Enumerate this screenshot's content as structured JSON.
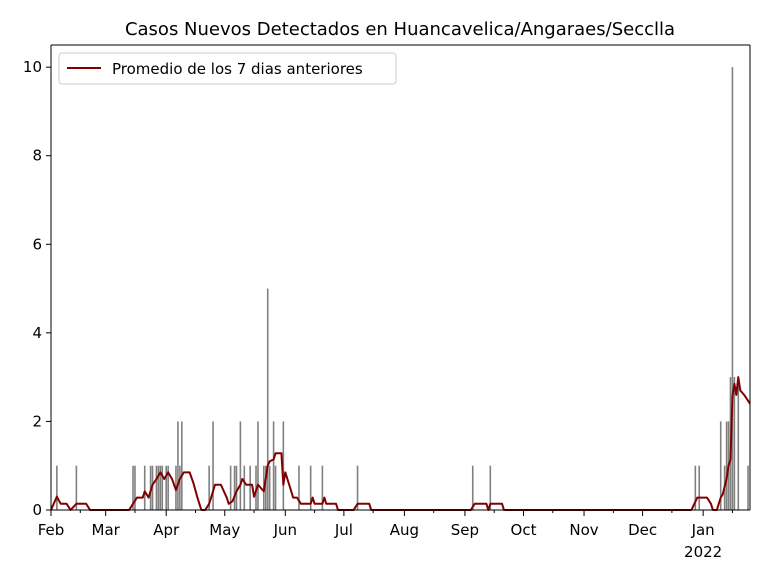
{
  "chart_data": {
    "type": "bar",
    "title": "Casos Nuevos Detectados en Huancavelica/Angaraes/Secclla",
    "xlabel": "",
    "ylabel": "",
    "x_start": "2021-02-01",
    "x_end": "2022-01-25",
    "ylim": [
      0,
      10.5
    ],
    "y_ticks": [
      0,
      2,
      4,
      6,
      8,
      10
    ],
    "x_ticks": [
      {
        "date": "2021-02-01",
        "label": "Feb"
      },
      {
        "date": "2021-03-01",
        "label": "Mar"
      },
      {
        "date": "2021-04-01",
        "label": "Apr"
      },
      {
        "date": "2021-05-01",
        "label": "May"
      },
      {
        "date": "2021-06-01",
        "label": "Jun"
      },
      {
        "date": "2021-07-01",
        "label": "Jul"
      },
      {
        "date": "2021-08-01",
        "label": "Aug"
      },
      {
        "date": "2021-09-01",
        "label": "Sep"
      },
      {
        "date": "2021-10-01",
        "label": "Oct"
      },
      {
        "date": "2021-11-01",
        "label": "Nov"
      },
      {
        "date": "2021-12-01",
        "label": "Dec"
      },
      {
        "date": "2022-01-01",
        "label": "Jan"
      }
    ],
    "year_label": "2022",
    "grid": false,
    "legend_position": "top-left",
    "bar_color": "#808080",
    "line_color": "#800000",
    "series": [
      {
        "name": "",
        "kind": "bar",
        "points": [
          [
            "2021-02-04",
            1
          ],
          [
            "2021-02-14",
            1
          ],
          [
            "2021-03-15",
            1
          ],
          [
            "2021-03-16",
            1
          ],
          [
            "2021-03-21",
            1
          ],
          [
            "2021-03-24",
            1
          ],
          [
            "2021-03-25",
            1
          ],
          [
            "2021-03-27",
            1
          ],
          [
            "2021-03-28",
            1
          ],
          [
            "2021-03-29",
            1
          ],
          [
            "2021-03-30",
            1
          ],
          [
            "2021-04-01",
            1
          ],
          [
            "2021-04-02",
            1
          ],
          [
            "2021-04-06",
            1
          ],
          [
            "2021-04-07",
            2
          ],
          [
            "2021-04-08",
            1
          ],
          [
            "2021-04-09",
            2
          ],
          [
            "2021-04-23",
            1
          ],
          [
            "2021-04-25",
            2
          ],
          [
            "2021-05-04",
            1
          ],
          [
            "2021-05-06",
            1
          ],
          [
            "2021-05-07",
            1
          ],
          [
            "2021-05-09",
            2
          ],
          [
            "2021-05-11",
            1
          ],
          [
            "2021-05-14",
            1
          ],
          [
            "2021-05-17",
            1
          ],
          [
            "2021-05-18",
            2
          ],
          [
            "2021-05-21",
            1
          ],
          [
            "2021-05-22",
            1
          ],
          [
            "2021-05-23",
            5
          ],
          [
            "2021-05-24",
            1
          ],
          [
            "2021-05-26",
            2
          ],
          [
            "2021-05-27",
            1
          ],
          [
            "2021-05-31",
            2
          ],
          [
            "2021-06-08",
            1
          ],
          [
            "2021-06-14",
            1
          ],
          [
            "2021-06-20",
            1
          ],
          [
            "2021-07-08",
            1
          ],
          [
            "2021-09-05",
            1
          ],
          [
            "2021-09-14",
            1
          ],
          [
            "2021-12-28",
            1
          ],
          [
            "2021-12-30",
            1
          ],
          [
            "2022-01-10",
            2
          ],
          [
            "2022-01-12",
            1
          ],
          [
            "2022-01-13",
            2
          ],
          [
            "2022-01-14",
            2
          ],
          [
            "2022-01-15",
            3
          ],
          [
            "2022-01-16",
            10
          ],
          [
            "2022-01-17",
            3
          ],
          [
            "2022-01-19",
            3
          ],
          [
            "2022-01-24",
            1
          ]
        ]
      },
      {
        "name": "Promedio de los 7 dias anteriores",
        "kind": "line",
        "points": [
          [
            "2021-02-01",
            0
          ],
          [
            "2021-02-04",
            0.3
          ],
          [
            "2021-02-06",
            0.14
          ],
          [
            "2021-02-09",
            0.14
          ],
          [
            "2021-02-11",
            0
          ],
          [
            "2021-02-14",
            0.14
          ],
          [
            "2021-02-19",
            0.14
          ],
          [
            "2021-02-21",
            0
          ],
          [
            "2021-03-13",
            0
          ],
          [
            "2021-03-15",
            0.14
          ],
          [
            "2021-03-17",
            0.28
          ],
          [
            "2021-03-20",
            0.28
          ],
          [
            "2021-03-21",
            0.42
          ],
          [
            "2021-03-23",
            0.28
          ],
          [
            "2021-03-25",
            0.57
          ],
          [
            "2021-03-27",
            0.7
          ],
          [
            "2021-03-29",
            0.85
          ],
          [
            "2021-03-31",
            0.7
          ],
          [
            "2021-04-02",
            0.85
          ],
          [
            "2021-04-04",
            0.7
          ],
          [
            "2021-04-06",
            0.45
          ],
          [
            "2021-04-08",
            0.7
          ],
          [
            "2021-04-10",
            0.85
          ],
          [
            "2021-04-13",
            0.85
          ],
          [
            "2021-04-15",
            0.6
          ],
          [
            "2021-04-17",
            0.28
          ],
          [
            "2021-04-19",
            0
          ],
          [
            "2021-04-21",
            0
          ],
          [
            "2021-04-23",
            0.14
          ],
          [
            "2021-04-24",
            0.28
          ],
          [
            "2021-04-26",
            0.57
          ],
          [
            "2021-04-29",
            0.57
          ],
          [
            "2021-05-02",
            0.28
          ],
          [
            "2021-05-03",
            0.14
          ],
          [
            "2021-05-05",
            0.2
          ],
          [
            "2021-05-07",
            0.42
          ],
          [
            "2021-05-09",
            0.57
          ],
          [
            "2021-05-10",
            0.7
          ],
          [
            "2021-05-12",
            0.57
          ],
          [
            "2021-05-15",
            0.57
          ],
          [
            "2021-05-16",
            0.3
          ],
          [
            "2021-05-18",
            0.57
          ],
          [
            "2021-05-21",
            0.42
          ],
          [
            "2021-05-23",
            1.0
          ],
          [
            "2021-05-24",
            1.1
          ],
          [
            "2021-05-26",
            1.14
          ],
          [
            "2021-05-27",
            1.28
          ],
          [
            "2021-05-30",
            1.28
          ],
          [
            "2021-05-31",
            0.57
          ],
          [
            "2021-06-01",
            0.85
          ],
          [
            "2021-06-03",
            0.57
          ],
          [
            "2021-06-05",
            0.28
          ],
          [
            "2021-06-07",
            0.28
          ],
          [
            "2021-06-09",
            0.14
          ],
          [
            "2021-06-14",
            0.14
          ],
          [
            "2021-06-15",
            0.28
          ],
          [
            "2021-06-16",
            0.14
          ],
          [
            "2021-06-20",
            0.14
          ],
          [
            "2021-06-21",
            0.28
          ],
          [
            "2021-06-22",
            0.14
          ],
          [
            "2021-06-27",
            0.14
          ],
          [
            "2021-06-28",
            0
          ],
          [
            "2021-07-06",
            0
          ],
          [
            "2021-07-08",
            0.14
          ],
          [
            "2021-07-14",
            0.14
          ],
          [
            "2021-07-15",
            0
          ],
          [
            "2021-09-04",
            0
          ],
          [
            "2021-09-06",
            0.14
          ],
          [
            "2021-09-12",
            0.14
          ],
          [
            "2021-09-13",
            0
          ],
          [
            "2021-09-14",
            0.14
          ],
          [
            "2021-09-20",
            0.14
          ],
          [
            "2021-09-21",
            0
          ],
          [
            "2021-12-26",
            0
          ],
          [
            "2021-12-29",
            0.28
          ],
          [
            "2022-01-03",
            0.28
          ],
          [
            "2022-01-05",
            0.14
          ],
          [
            "2022-01-06",
            0
          ],
          [
            "2022-01-08",
            0
          ],
          [
            "2022-01-10",
            0.28
          ],
          [
            "2022-01-11",
            0.35
          ],
          [
            "2022-01-13",
            0.7
          ],
          [
            "2022-01-14",
            1.0
          ],
          [
            "2022-01-15",
            1.14
          ],
          [
            "2022-01-16",
            2.57
          ],
          [
            "2022-01-17",
            2.85
          ],
          [
            "2022-01-18",
            2.6
          ],
          [
            "2022-01-19",
            3.0
          ],
          [
            "2022-01-20",
            2.7
          ],
          [
            "2022-01-22",
            2.6
          ],
          [
            "2022-01-25",
            2.4
          ]
        ]
      }
    ]
  }
}
